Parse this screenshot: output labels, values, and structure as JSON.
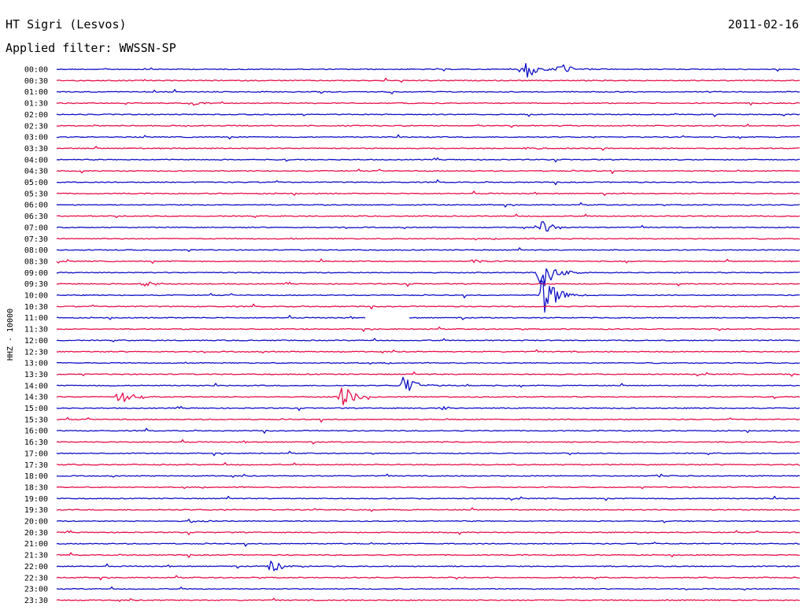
{
  "header": {
    "station": "HT Sigri (Lesvos)",
    "date": "2011-02-16",
    "filter": "Applied filter: WWSSN-SP"
  },
  "chart_data": {
    "type": "line",
    "title": "",
    "ylabel": "HHZ - 10000",
    "xlabel": "",
    "grid": false,
    "legend": "none",
    "colors": {
      "odd": "#1010c8",
      "even": "#e8104a"
    },
    "traces": [
      "00:00",
      "00:30",
      "01:00",
      "01:30",
      "02:00",
      "02:30",
      "03:00",
      "03:30",
      "04:00",
      "04:30",
      "05:00",
      "05:30",
      "06:00",
      "06:30",
      "07:00",
      "07:30",
      "08:00",
      "08:30",
      "09:00",
      "09:30",
      "10:00",
      "10:30",
      "11:00",
      "11:30",
      "12:00",
      "12:30",
      "13:00",
      "13:30",
      "14:00",
      "14:30",
      "15:00",
      "15:30",
      "16:00",
      "16:30",
      "17:00",
      "17:30",
      "18:00",
      "18:30",
      "19:00",
      "19:30",
      "20:00",
      "20:30",
      "21:00",
      "21:30",
      "22:00",
      "22:30",
      "23:00",
      "23:30"
    ],
    "trace_minutes": 30,
    "events": [
      {
        "trace": "00:00",
        "minute": 18.9,
        "amp": 1.0
      },
      {
        "trace": "00:00",
        "minute": 20.3,
        "amp": 0.6
      },
      {
        "trace": "01:30",
        "minute": 5.4,
        "amp": 0.25
      },
      {
        "trace": "03:30",
        "minute": 18.9,
        "amp": 0.2
      },
      {
        "trace": "07:00",
        "minute": 19.6,
        "amp": 0.6
      },
      {
        "trace": "08:30",
        "minute": 16.8,
        "amp": 0.2
      },
      {
        "trace": "09:00",
        "minute": 19.5,
        "amp": 2.0
      },
      {
        "trace": "09:30",
        "minute": 3.5,
        "amp": 0.25
      },
      {
        "trace": "10:00",
        "minute": 19.6,
        "amp": 2.2
      },
      {
        "trace": "14:00",
        "minute": 14.0,
        "amp": 0.9
      },
      {
        "trace": "14:30",
        "minute": 2.5,
        "amp": 0.75
      },
      {
        "trace": "14:30",
        "minute": 11.5,
        "amp": 1.3
      },
      {
        "trace": "15:00",
        "minute": 15.5,
        "amp": 0.2
      },
      {
        "trace": "18:00",
        "minute": 24.3,
        "amp": 0.2
      },
      {
        "trace": "20:00",
        "minute": 5.3,
        "amp": 0.2
      },
      {
        "trace": "22:00",
        "minute": 8.6,
        "amp": 0.85
      }
    ],
    "gaps": [
      {
        "trace": "11:00",
        "from_minute": 12.5,
        "to_minute": 14.2
      }
    ]
  }
}
